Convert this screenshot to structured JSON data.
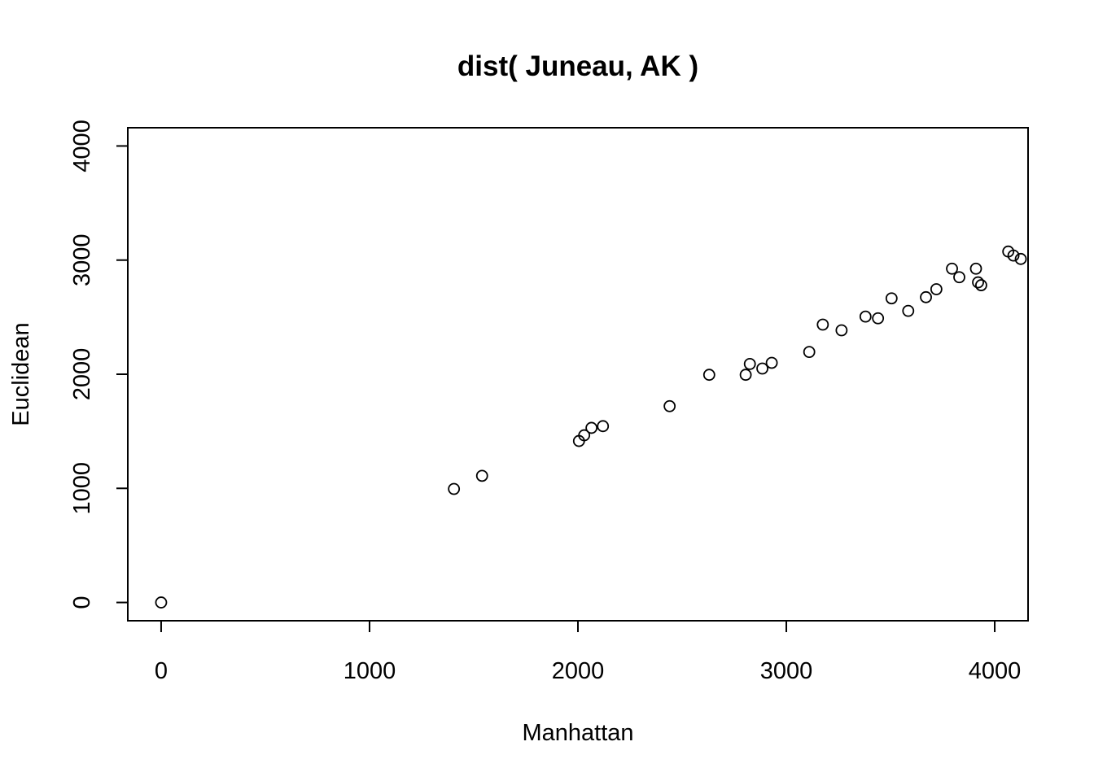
{
  "chart_data": {
    "type": "scatter",
    "title": "dist( Juneau, AK )",
    "xlabel": "Manhattan",
    "ylabel": "Euclidean",
    "xlim": [
      -160,
      4160
    ],
    "ylim": [
      -160,
      4160
    ],
    "x_ticks": [
      0,
      1000,
      2000,
      3000,
      4000
    ],
    "y_ticks": [
      0,
      1000,
      2000,
      3000,
      4000
    ],
    "x_tick_labels": [
      "0",
      "1000",
      "2000",
      "3000",
      "4000"
    ],
    "y_tick_labels": [
      "0",
      "1000",
      "2000",
      "3000",
      "4000"
    ],
    "grid": false,
    "marker": "open-circle",
    "points": [
      {
        "x": 0,
        "y": 0
      },
      {
        "x": 1405,
        "y": 995
      },
      {
        "x": 1540,
        "y": 1110
      },
      {
        "x": 2005,
        "y": 1415
      },
      {
        "x": 2030,
        "y": 1465
      },
      {
        "x": 2065,
        "y": 1530
      },
      {
        "x": 2120,
        "y": 1545
      },
      {
        "x": 2440,
        "y": 1720
      },
      {
        "x": 2630,
        "y": 1995
      },
      {
        "x": 2805,
        "y": 1995
      },
      {
        "x": 2825,
        "y": 2090
      },
      {
        "x": 2885,
        "y": 2050
      },
      {
        "x": 2930,
        "y": 2100
      },
      {
        "x": 3110,
        "y": 2195
      },
      {
        "x": 3175,
        "y": 2435
      },
      {
        "x": 3265,
        "y": 2385
      },
      {
        "x": 3380,
        "y": 2505
      },
      {
        "x": 3440,
        "y": 2490
      },
      {
        "x": 3505,
        "y": 2665
      },
      {
        "x": 3585,
        "y": 2555
      },
      {
        "x": 3670,
        "y": 2675
      },
      {
        "x": 3720,
        "y": 2745
      },
      {
        "x": 3795,
        "y": 2925
      },
      {
        "x": 3830,
        "y": 2850
      },
      {
        "x": 3910,
        "y": 2925
      },
      {
        "x": 3920,
        "y": 2805
      },
      {
        "x": 3935,
        "y": 2780
      },
      {
        "x": 4065,
        "y": 3075
      },
      {
        "x": 4090,
        "y": 3040
      },
      {
        "x": 4125,
        "y": 3010
      }
    ]
  }
}
